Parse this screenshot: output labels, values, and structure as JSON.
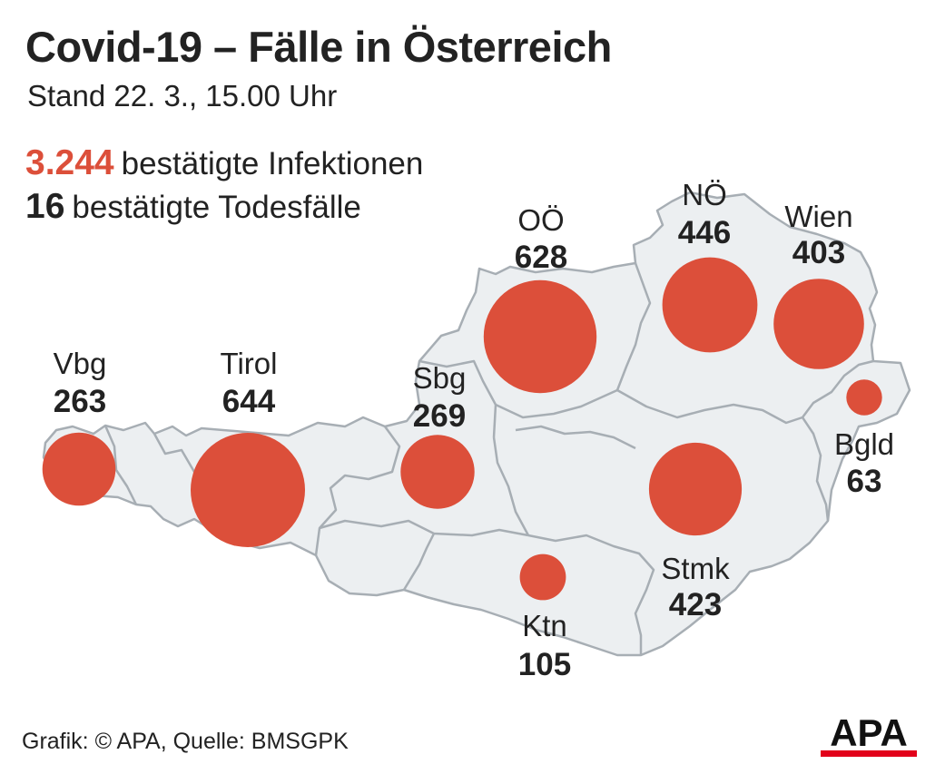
{
  "header": {
    "title": "Covid-19 – Fälle in Österreich",
    "subtitle": "Stand 22. 3., 15.00 Uhr"
  },
  "stats": {
    "infections": {
      "value": "3.244",
      "label": "bestätigte Infektionen"
    },
    "deaths": {
      "value": "16",
      "label": "bestätigte Todesfälle"
    }
  },
  "colors": {
    "accent": "#dc4f3a",
    "land": "#eceff1",
    "borders": "#a7aeb4",
    "text": "#222222"
  },
  "regions": [
    {
      "key": "vbg",
      "label": "Vbg",
      "value": "263",
      "cases": 263
    },
    {
      "key": "tirol",
      "label": "Tirol",
      "value": "644",
      "cases": 644
    },
    {
      "key": "sbg",
      "label": "Sbg",
      "value": "269",
      "cases": 269
    },
    {
      "key": "ooe",
      "label": "OÖ",
      "value": "628",
      "cases": 628
    },
    {
      "key": "noe",
      "label": "NÖ",
      "value": "446",
      "cases": 446
    },
    {
      "key": "wien",
      "label": "Wien",
      "value": "403",
      "cases": 403
    },
    {
      "key": "bgld",
      "label": "Bgld",
      "value": "63",
      "cases": 63
    },
    {
      "key": "stmk",
      "label": "Stmk",
      "value": "423",
      "cases": 423
    },
    {
      "key": "ktn",
      "label": "Ktn",
      "value": "105",
      "cases": 105
    }
  ],
  "footer": {
    "source": "Grafik: © APA, Quelle: BMSGPK",
    "logo_text": "APA"
  }
}
